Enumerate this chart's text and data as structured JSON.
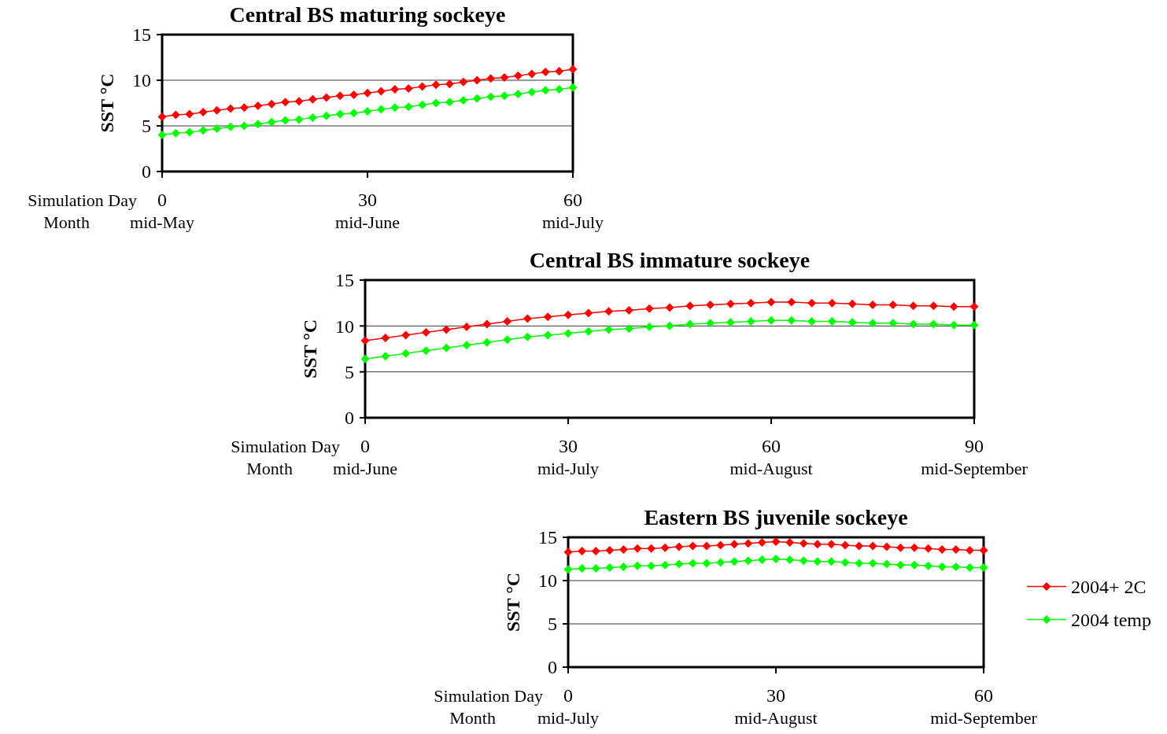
{
  "chart_data": [
    {
      "type": "line",
      "title": "Central BS maturing sockeye",
      "ylabel": "SST °C",
      "xlabel": "Simulation Day",
      "marker": "diamond",
      "line_style": "solid",
      "grid": "y",
      "legend": false,
      "x": [
        0,
        2,
        4,
        6,
        8,
        10,
        12,
        14,
        16,
        18,
        20,
        22,
        24,
        26,
        28,
        30,
        32,
        34,
        36,
        38,
        40,
        42,
        44,
        46,
        48,
        50,
        52,
        54,
        56,
        58,
        60
      ],
      "xlim": [
        0,
        60
      ],
      "xticks": [
        0,
        30,
        60
      ],
      "ylim": [
        0,
        15
      ],
      "yticks": [
        0,
        5,
        10,
        15
      ],
      "series": [
        {
          "color": "#ff0000",
          "values": [
            6.0,
            6.2,
            6.3,
            6.5,
            6.7,
            6.9,
            7.0,
            7.2,
            7.4,
            7.6,
            7.7,
            7.9,
            8.1,
            8.3,
            8.4,
            8.6,
            8.8,
            9.0,
            9.1,
            9.3,
            9.5,
            9.6,
            9.8,
            10.0,
            10.2,
            10.3,
            10.5,
            10.7,
            10.9,
            11.0,
            11.2
          ]
        },
        {
          "color": "#00ff00",
          "values": [
            4.0,
            4.2,
            4.3,
            4.5,
            4.7,
            4.9,
            5.0,
            5.2,
            5.4,
            5.6,
            5.7,
            5.9,
            6.1,
            6.3,
            6.4,
            6.6,
            6.8,
            7.0,
            7.1,
            7.3,
            7.5,
            7.6,
            7.8,
            8.0,
            8.2,
            8.3,
            8.5,
            8.7,
            8.9,
            9.0,
            9.2
          ]
        }
      ],
      "annotations": [
        "Month",
        "mid-May",
        "mid-June",
        "mid-July"
      ]
    },
    {
      "type": "line",
      "title": "Central BS immature sockeye",
      "ylabel": "SST °C",
      "xlabel": "Simulation Day",
      "marker": "diamond",
      "line_style": "solid",
      "grid": "y",
      "legend": false,
      "x": [
        0,
        3,
        6,
        9,
        12,
        15,
        18,
        21,
        24,
        27,
        30,
        33,
        36,
        39,
        42,
        45,
        48,
        51,
        54,
        57,
        60,
        63,
        66,
        69,
        72,
        75,
        78,
        81,
        84,
        87,
        90
      ],
      "xlim": [
        0,
        90
      ],
      "xticks": [
        0,
        30,
        60,
        90
      ],
      "ylim": [
        0,
        15
      ],
      "yticks": [
        0,
        5,
        10,
        15
      ],
      "series": [
        {
          "color": "#ff0000",
          "values": [
            8.4,
            8.7,
            9.0,
            9.3,
            9.6,
            9.9,
            10.2,
            10.5,
            10.8,
            11.0,
            11.2,
            11.4,
            11.6,
            11.7,
            11.9,
            12.0,
            12.2,
            12.3,
            12.4,
            12.5,
            12.6,
            12.6,
            12.5,
            12.5,
            12.4,
            12.3,
            12.3,
            12.2,
            12.2,
            12.1,
            12.1
          ]
        },
        {
          "color": "#00ff00",
          "values": [
            6.4,
            6.7,
            7.0,
            7.3,
            7.6,
            7.9,
            8.2,
            8.5,
            8.8,
            9.0,
            9.2,
            9.4,
            9.6,
            9.7,
            9.9,
            10.0,
            10.2,
            10.3,
            10.4,
            10.5,
            10.6,
            10.6,
            10.5,
            10.5,
            10.4,
            10.3,
            10.3,
            10.2,
            10.2,
            10.1,
            10.1
          ]
        }
      ],
      "annotations": [
        "Month",
        "mid-June",
        "mid-July",
        "mid-August",
        "mid-September"
      ]
    },
    {
      "type": "line",
      "title": "Eastern BS juvenile sockeye",
      "ylabel": "SST °C",
      "xlabel": "Simulation Day",
      "marker": "diamond",
      "line_style": "solid",
      "grid": "y",
      "legend": "right",
      "x": [
        0,
        2,
        4,
        6,
        8,
        10,
        12,
        14,
        16,
        18,
        20,
        22,
        24,
        26,
        28,
        30,
        32,
        34,
        36,
        38,
        40,
        42,
        44,
        46,
        48,
        50,
        52,
        54,
        56,
        58,
        60
      ],
      "xlim": [
        0,
        60
      ],
      "xticks": [
        0,
        30,
        60
      ],
      "ylim": [
        0,
        15
      ],
      "yticks": [
        0,
        5,
        10,
        15
      ],
      "series": [
        {
          "name": "2004+ 2C",
          "color": "#ff0000",
          "values": [
            13.3,
            13.4,
            13.4,
            13.5,
            13.6,
            13.7,
            13.7,
            13.8,
            13.9,
            14.0,
            14.0,
            14.1,
            14.2,
            14.3,
            14.4,
            14.5,
            14.4,
            14.3,
            14.2,
            14.2,
            14.1,
            14.0,
            14.0,
            13.9,
            13.8,
            13.8,
            13.7,
            13.6,
            13.6,
            13.5,
            13.5
          ]
        },
        {
          "name": "2004 temp",
          "color": "#00ff00",
          "values": [
            11.3,
            11.4,
            11.4,
            11.5,
            11.6,
            11.7,
            11.7,
            11.8,
            11.9,
            12.0,
            12.0,
            12.1,
            12.2,
            12.3,
            12.4,
            12.5,
            12.4,
            12.3,
            12.2,
            12.2,
            12.1,
            12.0,
            12.0,
            11.9,
            11.8,
            11.8,
            11.7,
            11.6,
            11.6,
            11.5,
            11.5
          ]
        }
      ],
      "annotations": [
        "Month",
        "mid-July",
        "mid-August",
        "mid-September"
      ]
    }
  ]
}
